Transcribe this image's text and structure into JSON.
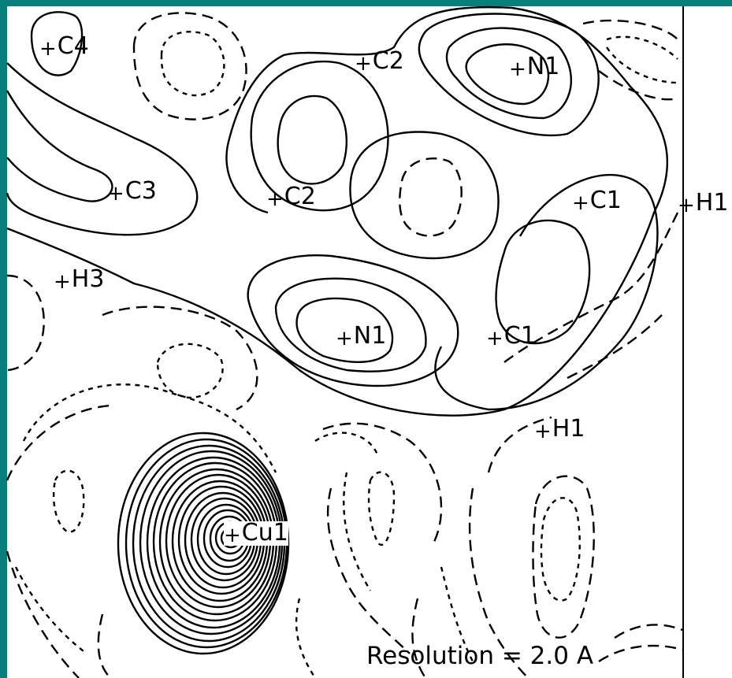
{
  "colors": {
    "frame": "#087f7a",
    "background": "#ffffff",
    "ink": "#000000"
  },
  "resolution_label": "Resolution = 2.0 A",
  "atoms": [
    {
      "id": "c4",
      "label": "C4"
    },
    {
      "id": "c2a",
      "label": "C2"
    },
    {
      "id": "n1a",
      "label": "N1"
    },
    {
      "id": "c3",
      "label": "C3"
    },
    {
      "id": "c2b",
      "label": "C2"
    },
    {
      "id": "c1a",
      "label": "C1"
    },
    {
      "id": "h1a",
      "label": "H1"
    },
    {
      "id": "h3",
      "label": "H3"
    },
    {
      "id": "n1b",
      "label": "N1"
    },
    {
      "id": "c1b",
      "label": "C1"
    },
    {
      "id": "h1b",
      "label": "H1"
    },
    {
      "id": "cu1",
      "label": "Cu1"
    }
  ]
}
